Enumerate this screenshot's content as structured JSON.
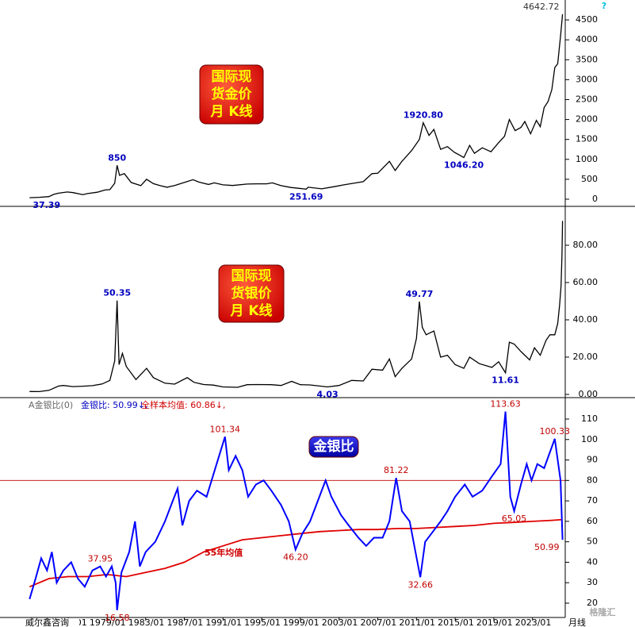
{
  "chart_data": [
    {
      "type": "line",
      "color": "#000000",
      "label_color": "#0000c0",
      "box_lines": [
        "国际现",
        "货金价",
        "月 K线"
      ],
      "xlim": [
        1970.4,
        2026.3
      ],
      "ylim": [
        -140,
        4900
      ],
      "yticks": [
        0,
        500,
        1000,
        1500,
        2000,
        2500,
        3000,
        3500,
        4000,
        4500
      ],
      "x": [
        1971.0,
        1972.0,
        1973.0,
        1973.5,
        1974.0,
        1974.9,
        1975.5,
        1976.5,
        1977.0,
        1978.0,
        1978.8,
        1979.3,
        1979.8,
        1980.05,
        1980.3,
        1980.8,
        1981.5,
        1982.5,
        1983.1,
        1983.8,
        1984.5,
        1985.2,
        1986.0,
        1987.0,
        1987.9,
        1988.5,
        1989.5,
        1990.1,
        1991.0,
        1992.0,
        1993.5,
        1994.5,
        1995.5,
        1996.1,
        1997.0,
        1998.0,
        1999.6,
        1999.8,
        2001.2,
        2002.5,
        2003.5,
        2004.5,
        2005.5,
        2006.4,
        2007.0,
        2008.2,
        2008.8,
        2009.5,
        2010.5,
        2011.3,
        2011.7,
        2012.3,
        2012.8,
        2013.5,
        2014.2,
        2014.9,
        2015.9,
        2016.5,
        2017.0,
        2017.8,
        2018.7,
        2019.5,
        2020.1,
        2020.6,
        2021.2,
        2021.8,
        2022.2,
        2022.8,
        2023.4,
        2023.8,
        2024.2,
        2024.6,
        2025.0,
        2025.3,
        2025.6,
        2025.9,
        2026.1
      ],
      "values": [
        37.39,
        48,
        65,
        120,
        150,
        180,
        165,
        115,
        140,
        175,
        230,
        240,
        400,
        850,
        600,
        640,
        420,
        340,
        500,
        390,
        340,
        300,
        345,
        420,
        490,
        430,
        370,
        410,
        360,
        345,
        380,
        385,
        385,
        410,
        340,
        295,
        251.69,
        300,
        260,
        315,
        360,
        400,
        440,
        640,
        650,
        950,
        720,
        950,
        1220,
        1500,
        1920.8,
        1600,
        1750,
        1250,
        1320,
        1180,
        1046.2,
        1350,
        1150,
        1290,
        1190,
        1420,
        1580,
        2000,
        1720,
        1800,
        1950,
        1640,
        1980,
        1820,
        2300,
        2450,
        2750,
        3300,
        3400,
        4100,
        4642.72
      ],
      "value_labels": [
        "37.39",
        null,
        null,
        null,
        null,
        null,
        null,
        null,
        null,
        null,
        null,
        null,
        null,
        "850",
        null,
        null,
        null,
        null,
        null,
        null,
        null,
        null,
        null,
        null,
        null,
        null,
        null,
        null,
        null,
        null,
        null,
        null,
        null,
        null,
        null,
        null,
        "251.69",
        null,
        null,
        null,
        null,
        null,
        null,
        null,
        null,
        null,
        null,
        null,
        null,
        null,
        "1920.80",
        null,
        null,
        null,
        null,
        null,
        "1046.20",
        null,
        null,
        null,
        null,
        null,
        null,
        null,
        null,
        null,
        null,
        null,
        null,
        null,
        null,
        null,
        null,
        null,
        null,
        null,
        "4642.72"
      ]
    },
    {
      "type": "line",
      "color": "#000000",
      "label_color": "#0000c0",
      "box_lines": [
        "国际现",
        "货银价",
        "月 K线"
      ],
      "xlim": [
        1970.4,
        2026.3
      ],
      "ylim": [
        -1.3,
        100
      ],
      "yticks": [
        {
          "value": 0,
          "label": "0.00"
        },
        {
          "value": 20,
          "label": "20.00"
        },
        {
          "value": 40,
          "label": "40.00"
        },
        {
          "value": 60,
          "label": "60.00"
        },
        {
          "value": 80,
          "label": "80.00"
        }
      ],
      "x": [
        1971.0,
        1972.0,
        1973.0,
        1974.0,
        1974.5,
        1975.5,
        1976.5,
        1977.5,
        1978.5,
        1979.3,
        1979.8,
        1980.05,
        1980.25,
        1980.6,
        1981.0,
        1982.0,
        1983.1,
        1983.8,
        1985.0,
        1986.0,
        1987.3,
        1988.0,
        1989.0,
        1990.0,
        1991.0,
        1992.5,
        1993.5,
        1994.5,
        1996.0,
        1997.0,
        1998.1,
        1999.0,
        2000.0,
        2001.8,
        2003.0,
        2004.3,
        2005.5,
        2006.4,
        2007.5,
        2008.2,
        2008.8,
        2009.5,
        2010.5,
        2011.0,
        2011.3,
        2011.6,
        2012.0,
        2012.8,
        2013.5,
        2014.2,
        2015.0,
        2015.9,
        2016.5,
        2017.5,
        2018.8,
        2019.5,
        2020.2,
        2020.6,
        2021.1,
        2021.8,
        2022.7,
        2023.2,
        2023.8,
        2024.4,
        2024.8,
        2025.3,
        2025.6,
        2025.8,
        2025.95,
        2026.05,
        2026.1
      ],
      "values": [
        1.55,
        1.5,
        2.2,
        4.5,
        4.8,
        4.2,
        4.4,
        4.7,
        5.6,
        7.5,
        18,
        50.35,
        16,
        22,
        15,
        8,
        14,
        9,
        6,
        5.5,
        9,
        6.5,
        5.3,
        5,
        4,
        3.8,
        5.2,
        5.3,
        5.2,
        4.8,
        7,
        5.2,
        5.1,
        4.03,
        4.8,
        7.5,
        7.2,
        13.5,
        13,
        19,
        9.5,
        14,
        19,
        30,
        49.77,
        36,
        32,
        34,
        20,
        21,
        16,
        14,
        20,
        16.5,
        14.5,
        17.5,
        11.61,
        28,
        27,
        23,
        18.5,
        25,
        21,
        29,
        32,
        32,
        38,
        48,
        58,
        75,
        93
      ],
      "value_labels": [
        null,
        null,
        null,
        null,
        null,
        null,
        null,
        null,
        null,
        null,
        null,
        "50.35",
        null,
        null,
        null,
        null,
        null,
        null,
        null,
        null,
        null,
        null,
        null,
        null,
        null,
        null,
        null,
        null,
        null,
        null,
        null,
        null,
        null,
        "4.03",
        null,
        null,
        null,
        null,
        null,
        null,
        null,
        null,
        null,
        null,
        "49.77",
        null,
        null,
        null,
        null,
        null,
        null,
        null,
        null,
        null,
        null,
        null,
        "11.61",
        null,
        null,
        null,
        null,
        null,
        null,
        null,
        null,
        null,
        null,
        null,
        null,
        null,
        null
      ]
    },
    {
      "type": "line",
      "label_color": "#c00000",
      "box_lines": [
        "金银比"
      ],
      "header": [
        "A金银比(0)",
        "金银比: 50.99↓,",
        "全样本均值: 60.86↓,"
      ],
      "annotation": "55年均值",
      "reference_line": 80,
      "xlim": [
        1970.4,
        2026.3
      ],
      "ylim": [
        13,
        119.7
      ],
      "yticks": [
        20,
        30,
        40,
        50,
        60,
        70,
        80,
        90,
        100,
        110
      ],
      "xticks": [
        {
          "value": 1975,
          "label": "1975/01"
        },
        {
          "value": 1979,
          "label": "1979/01"
        },
        {
          "value": 1983,
          "label": "1983/01"
        },
        {
          "value": 1987,
          "label": "1987/01"
        },
        {
          "value": 1991,
          "label": "1991/01"
        },
        {
          "value": 1995,
          "label": "1995/01"
        },
        {
          "value": 1999,
          "label": "1999/01"
        },
        {
          "value": 2003,
          "label": "2003/01"
        },
        {
          "value": 2007,
          "label": "2007/01"
        },
        {
          "value": 2011,
          "label": "2011/01"
        },
        {
          "value": 2015,
          "label": "2015/01"
        },
        {
          "value": 2019,
          "label": "2019/01"
        },
        {
          "value": 2023,
          "label": "2023/01"
        }
      ],
      "xaxis_suffix": "月线",
      "series": [
        {
          "color": "#0000ff",
          "x": [
            1971.0,
            1971.5,
            1972.2,
            1972.8,
            1973.3,
            1973.8,
            1974.5,
            1975.3,
            1976.0,
            1976.7,
            1977.5,
            1978.3,
            1978.9,
            1979.5,
            1979.9,
            1980.05,
            1980.5,
            1981.3,
            1981.9,
            1982.4,
            1983.0,
            1984.0,
            1985.0,
            1985.8,
            1986.3,
            1986.8,
            1987.5,
            1988.3,
            1989.3,
            1990.2,
            1991.2,
            1991.6,
            1992.3,
            1993.0,
            1993.6,
            1994.4,
            1995.2,
            1996.0,
            1997.0,
            1997.8,
            1998.5,
            1999.2,
            2000.0,
            2000.8,
            2001.6,
            2002.2,
            2003.2,
            2004.0,
            2005.0,
            2005.8,
            2006.6,
            2007.5,
            2008.2,
            2008.9,
            2009.5,
            2010.3,
            2010.9,
            2011.4,
            2011.9,
            2012.7,
            2013.5,
            2014.2,
            2015.0,
            2016.0,
            2016.8,
            2017.8,
            2018.8,
            2019.7,
            2020.2,
            2020.7,
            2021.1,
            2021.8,
            2022.4,
            2022.9,
            2023.5,
            2024.2,
            2025.3,
            2025.6,
            2025.9,
            2026.1
          ],
          "values": [
            22,
            30,
            42,
            36,
            45,
            30,
            36,
            40,
            32,
            28,
            36,
            37.95,
            33,
            38,
            30,
            16.58,
            35,
            45,
            60,
            38,
            45,
            50,
            60,
            70,
            76,
            58,
            70,
            75,
            72,
            86,
            101.34,
            85,
            92,
            85,
            72,
            78,
            80,
            75,
            68,
            60,
            46.2,
            54,
            60,
            70,
            80,
            72,
            63,
            58,
            52,
            48,
            52,
            52,
            60,
            81.22,
            65,
            60,
            45,
            32.66,
            50,
            55,
            60,
            65,
            72,
            78,
            72,
            75,
            82,
            88,
            113.63,
            72,
            65.05,
            78,
            88,
            80,
            88,
            86,
            100.33,
            90,
            80,
            50.99
          ],
          "value_labels": [
            null,
            null,
            null,
            null,
            null,
            null,
            null,
            null,
            null,
            null,
            null,
            "37.95",
            null,
            null,
            null,
            "16.58",
            null,
            null,
            null,
            null,
            null,
            null,
            null,
            null,
            null,
            null,
            null,
            null,
            null,
            null,
            "101.34",
            null,
            null,
            null,
            null,
            null,
            null,
            null,
            null,
            null,
            "46.20",
            null,
            null,
            null,
            null,
            null,
            null,
            null,
            null,
            null,
            null,
            null,
            null,
            "81.22",
            null,
            null,
            null,
            "32.66",
            null,
            null,
            null,
            null,
            null,
            null,
            null,
            null,
            null,
            null,
            "113.63",
            null,
            "65.05",
            null,
            null,
            null,
            null,
            null,
            "100.33",
            null,
            null,
            "50.99"
          ]
        },
        {
          "color": "#e00000",
          "x": [
            1971,
            1973,
            1975,
            1977,
            1979,
            1981,
            1983,
            1985,
            1987,
            1989,
            1991,
            1993,
            1995,
            1997,
            1999,
            2001,
            2003,
            2005,
            2007,
            2009,
            2011,
            2013,
            2015,
            2017,
            2019,
            2021,
            2023,
            2025,
            2026.1
          ],
          "values": [
            28,
            32,
            33,
            33,
            34,
            33,
            35,
            37,
            40,
            45,
            48,
            51,
            52,
            53,
            54,
            55,
            55.5,
            56,
            56,
            56.5,
            56.5,
            57,
            57.5,
            58,
            59,
            59.5,
            60,
            60.5,
            60.86
          ]
        }
      ]
    }
  ],
  "footer": {
    "source": "威尔鑫咨询",
    "watermark": "格隆汇",
    "help": "?"
  }
}
